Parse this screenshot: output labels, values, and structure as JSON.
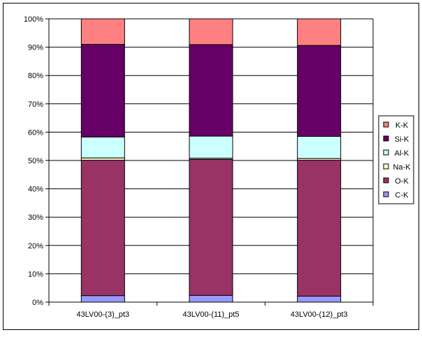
{
  "chart_data": {
    "type": "bar",
    "stacked": "percent",
    "categories": [
      "43LV00-(3)_pt3",
      "43LV00-(11)_pt5",
      "43LV00-(12)_pt3"
    ],
    "series": [
      {
        "name": "C-K",
        "color": "#9999FF",
        "values": [
          2.3,
          2.4,
          2.1
        ]
      },
      {
        "name": "O-K",
        "color": "#993366",
        "values": [
          47.8,
          48.0,
          48.0
        ]
      },
      {
        "name": "Na-K",
        "color": "#FFFFCC",
        "values": [
          0.8,
          0.4,
          0.6
        ]
      },
      {
        "name": "Al-K",
        "color": "#CCFFFF",
        "values": [
          7.4,
          7.8,
          7.8
        ]
      },
      {
        "name": "Si-K",
        "color": "#660066",
        "values": [
          32.7,
          32.3,
          32.1
        ]
      },
      {
        "name": "K-K",
        "color": "#FF8080",
        "values": [
          9.0,
          9.1,
          9.4
        ]
      }
    ],
    "yticks": [
      "0%",
      "10%",
      "20%",
      "30%",
      "40%",
      "50%",
      "60%",
      "70%",
      "80%",
      "90%",
      "100%"
    ],
    "ylim": [
      0,
      100
    ],
    "grid": true,
    "legend_position": "right"
  }
}
